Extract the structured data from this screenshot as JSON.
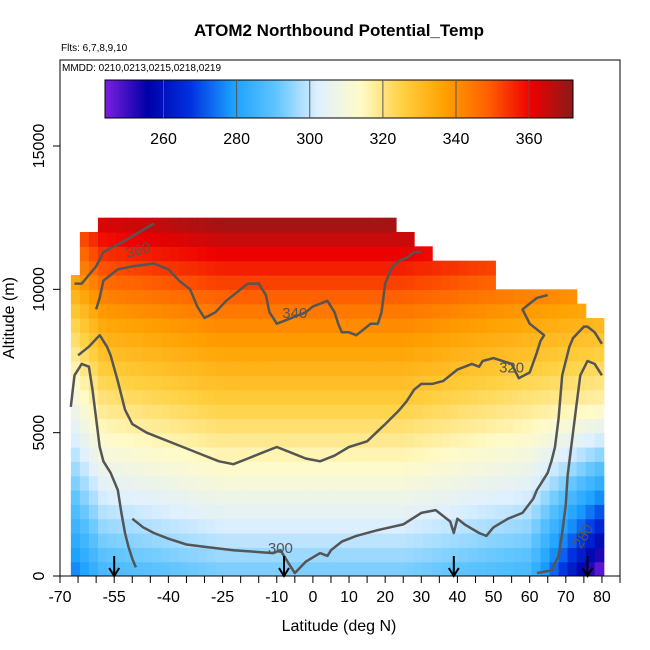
{
  "chart_data": {
    "type": "heatmap",
    "title": "ATOM2 Northbound Potential_Temp",
    "flights_note": "Flts: 6,7,8,9,10",
    "dates_note": "MMDD: 0210,0213,0215,0218,0219",
    "xlabel": "Latitude (deg N)",
    "ylabel": "Altitude (m)",
    "xlim": [
      -70,
      85
    ],
    "ylim": [
      0,
      18000
    ],
    "x_ticks": [
      {
        "value": -70,
        "label": "-70"
      },
      {
        "value": -55,
        "label": "-55"
      },
      {
        "value": -40,
        "label": "-40"
      },
      {
        "value": -25,
        "label": "-25"
      },
      {
        "value": -10,
        "label": "-10"
      },
      {
        "value": 0,
        "label": "0"
      },
      {
        "value": 10,
        "label": "10"
      },
      {
        "value": 20,
        "label": "20"
      },
      {
        "value": 30,
        "label": "30"
      },
      {
        "value": 40,
        "label": "40"
      },
      {
        "value": 50,
        "label": "50"
      },
      {
        "value": 60,
        "label": "60"
      },
      {
        "value": 70,
        "label": "70"
      },
      {
        "value": 80,
        "label": "80"
      }
    ],
    "y_ticks": [
      {
        "value": 0,
        "label": "0"
      },
      {
        "value": 5000,
        "label": "5000"
      },
      {
        "value": 10000,
        "label": "10000"
      },
      {
        "value": 15000,
        "label": "15000"
      }
    ],
    "colorbar": {
      "vmin": 244,
      "vmax": 372,
      "ticks": [
        {
          "value": 260,
          "label": "260"
        },
        {
          "value": 280,
          "label": "280"
        },
        {
          "value": 300,
          "label": "300"
        },
        {
          "value": 320,
          "label": "320"
        },
        {
          "value": 340,
          "label": "340"
        },
        {
          "value": 360,
          "label": "360"
        }
      ],
      "colors": [
        "#7b1fe0",
        "#0000a8",
        "#0030e0",
        "#1aa0ff",
        "#5ec4ff",
        "#dff0ff",
        "#fffbc8",
        "#ffd040",
        "#ffa000",
        "#ff6000",
        "#ee0000",
        "#8b1a1a"
      ]
    },
    "contours": [
      {
        "label": "280",
        "label_x": 76,
        "label_y": 1300,
        "label_rot": -60,
        "points": [
          [
            62,
            100
          ],
          [
            66,
            200
          ],
          [
            68,
            700
          ],
          [
            69,
            1500
          ],
          [
            70,
            2500
          ],
          [
            70.5,
            3500
          ],
          [
            71.5,
            4500
          ],
          [
            73,
            6000
          ],
          [
            74,
            7000
          ],
          [
            76,
            7500
          ],
          [
            78,
            7400
          ],
          [
            80,
            7000
          ]
        ]
      },
      {
        "label": "280",
        "label_x": 0,
        "label_y": 0,
        "label_rot": 0,
        "points": [
          [
            -67,
            5900
          ],
          [
            -66,
            7000
          ],
          [
            -64,
            7400
          ],
          [
            -62,
            7300
          ],
          [
            -61,
            6500
          ],
          [
            -60,
            5500
          ],
          [
            -59,
            4500
          ],
          [
            -58,
            4000
          ],
          [
            -56,
            3600
          ],
          [
            -54,
            3000
          ],
          [
            -53,
            2200
          ],
          [
            -52,
            1500
          ],
          [
            -51,
            1000
          ],
          [
            -50,
            600
          ],
          [
            -49,
            300
          ]
        ]
      },
      {
        "label": "300",
        "label_x": -9,
        "label_y": 800,
        "label_rot": 0,
        "points": [
          [
            -50,
            2000
          ],
          [
            -47,
            1700
          ],
          [
            -44,
            1500
          ],
          [
            -40,
            1300
          ],
          [
            -35,
            1100
          ],
          [
            -29,
            1000
          ],
          [
            -22,
            900
          ],
          [
            -11,
            800
          ],
          [
            -9,
            900
          ],
          [
            -8,
            700
          ],
          [
            -6,
            300
          ],
          [
            -5,
            100
          ],
          [
            -2,
            500
          ],
          [
            2,
            800
          ],
          [
            4,
            700
          ],
          [
            5,
            900
          ],
          [
            8,
            1200
          ],
          [
            12,
            1400
          ],
          [
            18,
            1600
          ],
          [
            25,
            1800
          ],
          [
            30,
            2200
          ],
          [
            34,
            2300
          ],
          [
            38,
            1900
          ],
          [
            39,
            1500
          ],
          [
            40,
            2000
          ],
          [
            41,
            1900
          ],
          [
            42,
            1800
          ],
          [
            46,
            1500
          ],
          [
            48,
            1400
          ],
          [
            50,
            1700
          ],
          [
            54,
            2000
          ],
          [
            58,
            2200
          ],
          [
            61,
            2700
          ],
          [
            62,
            3000
          ],
          [
            63,
            3200
          ],
          [
            65,
            3600
          ],
          [
            66,
            4000
          ],
          [
            67,
            4500
          ],
          [
            68,
            5500
          ],
          [
            69,
            7000
          ],
          [
            71,
            8000
          ],
          [
            72,
            8300
          ],
          [
            75,
            8700
          ],
          [
            76,
            8700
          ],
          [
            78,
            8500
          ],
          [
            80,
            8100
          ]
        ]
      },
      {
        "label": "320",
        "label_x": 55,
        "label_y": 7100,
        "label_rot": 0,
        "points": [
          [
            -65,
            7700
          ],
          [
            -62,
            8000
          ],
          [
            -59,
            8400
          ],
          [
            -57,
            8000
          ],
          [
            -56,
            7700
          ],
          [
            -54,
            6800
          ],
          [
            -52,
            5800
          ],
          [
            -50,
            5300
          ],
          [
            -46,
            5000
          ],
          [
            -42,
            4800
          ],
          [
            -38,
            4600
          ],
          [
            -34,
            4400
          ],
          [
            -30,
            4200
          ],
          [
            -26,
            4000
          ],
          [
            -22,
            3900
          ],
          [
            -18,
            4100
          ],
          [
            -14,
            4300
          ],
          [
            -10,
            4500
          ],
          [
            -6,
            4300
          ],
          [
            -2,
            4100
          ],
          [
            2,
            4000
          ],
          [
            6,
            4200
          ],
          [
            10,
            4500
          ],
          [
            15,
            4700
          ],
          [
            20,
            5300
          ],
          [
            24,
            5800
          ],
          [
            26,
            6100
          ],
          [
            28,
            6500
          ],
          [
            30,
            6700
          ],
          [
            33,
            6700
          ],
          [
            36,
            6800
          ],
          [
            40,
            7200
          ],
          [
            44,
            7400
          ],
          [
            46,
            7300
          ],
          [
            47,
            7500
          ],
          [
            50,
            7600
          ],
          [
            55,
            7400
          ],
          [
            57,
            6900
          ],
          [
            60,
            7100
          ],
          [
            62,
            7800
          ],
          [
            63,
            8200
          ],
          [
            64,
            8400
          ],
          [
            60,
            8800
          ],
          [
            58,
            9300
          ],
          [
            62,
            9700
          ],
          [
            65,
            9800
          ]
        ]
      },
      {
        "label": "340",
        "label_x": -5,
        "label_y": 9000,
        "label_rot": 0,
        "points": [
          [
            -60,
            9300
          ],
          [
            -59,
            9700
          ],
          [
            -58,
            10300
          ],
          [
            -56,
            10500
          ],
          [
            -54,
            10700
          ],
          [
            -50,
            10800
          ],
          [
            -44,
            10900
          ],
          [
            -40,
            10700
          ],
          [
            -37,
            10300
          ],
          [
            -34,
            10000
          ],
          [
            -32,
            9400
          ],
          [
            -30,
            9000
          ],
          [
            -27,
            9200
          ],
          [
            -24,
            9600
          ],
          [
            -20,
            10000
          ],
          [
            -18,
            10200
          ],
          [
            -15,
            10200
          ],
          [
            -13,
            9800
          ],
          [
            -12,
            9200
          ],
          [
            -11,
            9000
          ],
          [
            -10,
            8800
          ],
          [
            -8,
            8900
          ],
          [
            -2,
            9200
          ],
          [
            0,
            9400
          ],
          [
            2,
            9500
          ],
          [
            4,
            9600
          ],
          [
            6,
            9200
          ],
          [
            7,
            8800
          ],
          [
            8,
            8500
          ],
          [
            10,
            8500
          ],
          [
            12,
            8400
          ],
          [
            14,
            8600
          ],
          [
            16,
            8800
          ],
          [
            18,
            8800
          ],
          [
            19,
            9200
          ],
          [
            20,
            10200
          ],
          [
            21,
            10500
          ],
          [
            22,
            10800
          ],
          [
            24,
            11000
          ],
          [
            26,
            11100
          ],
          [
            28,
            11300
          ],
          [
            30,
            11300
          ]
        ]
      },
      {
        "label": "360",
        "label_x": -48,
        "label_y": 11200,
        "label_rot": -15,
        "points": [
          [
            -66,
            10200
          ],
          [
            -64,
            10200
          ],
          [
            -62,
            10500
          ],
          [
            -60,
            10800
          ],
          [
            -58,
            11300
          ],
          [
            -55,
            11500
          ],
          [
            -52,
            11700
          ],
          [
            -48,
            12000
          ],
          [
            -44,
            12300
          ]
        ]
      }
    ],
    "flight_arrows": [
      -55,
      -8,
      39,
      76
    ]
  }
}
